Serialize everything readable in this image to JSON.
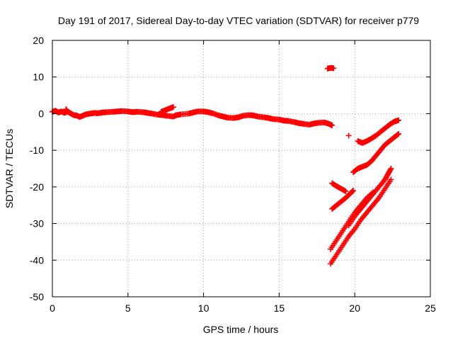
{
  "chart_data": {
    "type": "scatter",
    "title": "Day 191 of 2017, Sidereal Day-to-day VTEC variation (SDTVAR) for receiver p779",
    "xlabel": "GPS time / hours",
    "ylabel": "SDTVAR / TECUs",
    "xlim": [
      0,
      25
    ],
    "ylim": [
      -50,
      20
    ],
    "xticks": [
      0,
      5,
      10,
      15,
      20,
      25
    ],
    "yticks": [
      -50,
      -40,
      -30,
      -20,
      -10,
      0,
      10,
      20
    ],
    "grid": true,
    "legend": "none",
    "marker": "+",
    "color": "#ff0000",
    "series": [
      {
        "values": [
          [
            0.0,
            0.5
          ],
          [
            0.2,
            0.8
          ],
          [
            0.4,
            0.3
          ],
          [
            0.6,
            0.6
          ],
          [
            0.8,
            0.2
          ],
          [
            1.0,
            0.6
          ],
          [
            1.2,
            0.1
          ],
          [
            1.4,
            -0.4
          ],
          [
            1.6,
            -0.5
          ],
          [
            1.8,
            -0.9
          ],
          [
            2.0,
            -0.6
          ],
          [
            2.2,
            -0.2
          ],
          [
            2.5,
            0.0
          ],
          [
            2.8,
            0.2
          ],
          [
            3.0,
            0.1
          ],
          [
            3.3,
            0.3
          ],
          [
            3.6,
            0.4
          ],
          [
            4.0,
            0.5
          ],
          [
            4.3,
            0.6
          ],
          [
            4.6,
            0.7
          ],
          [
            5.0,
            0.6
          ],
          [
            5.3,
            0.4
          ],
          [
            5.6,
            0.5
          ],
          [
            6.0,
            0.4
          ],
          [
            6.3,
            0.2
          ],
          [
            6.6,
            0.0
          ],
          [
            7.0,
            -0.3
          ],
          [
            7.3,
            -0.4
          ],
          [
            7.6,
            -0.6
          ],
          [
            8.0,
            -0.8
          ],
          [
            8.2,
            -0.4
          ],
          [
            8.5,
            -0.2
          ],
          [
            9.0,
            0.0
          ],
          [
            9.3,
            0.3
          ],
          [
            9.6,
            0.6
          ],
          [
            10.0,
            0.6
          ],
          [
            10.3,
            0.4
          ],
          [
            10.6,
            0.1
          ],
          [
            11.0,
            -0.5
          ],
          [
            11.3,
            -0.8
          ],
          [
            11.6,
            -1.1
          ],
          [
            12.0,
            -1.2
          ],
          [
            12.3,
            -1.0
          ],
          [
            12.6,
            -0.6
          ],
          [
            13.0,
            -0.4
          ],
          [
            13.3,
            -0.5
          ],
          [
            13.6,
            -0.8
          ],
          [
            14.0,
            -1.0
          ],
          [
            14.3,
            -1.2
          ],
          [
            14.6,
            -1.5
          ],
          [
            15.0,
            -1.6
          ],
          [
            15.3,
            -1.9
          ],
          [
            15.6,
            -2.0
          ],
          [
            16.0,
            -2.3
          ],
          [
            16.3,
            -2.6
          ],
          [
            16.6,
            -2.8
          ],
          [
            17.0,
            -3.0
          ],
          [
            17.3,
            -2.7
          ],
          [
            17.6,
            -2.5
          ],
          [
            18.0,
            -2.4
          ],
          [
            18.3,
            -2.8
          ],
          [
            18.5,
            -3.2
          ],
          [
            7.2,
            0.5
          ],
          [
            7.5,
            1.0
          ],
          [
            7.8,
            1.5
          ],
          [
            8.0,
            1.8
          ],
          [
            0.9,
            1.2
          ],
          [
            1.0,
            0.5
          ]
        ]
      },
      {
        "values": [
          [
            18.2,
            12.3
          ],
          [
            18.4,
            12.5
          ],
          [
            18.6,
            12.4
          ]
        ]
      },
      {
        "values": [
          [
            19.6,
            -6.0
          ]
        ]
      },
      {
        "values": [
          [
            18.5,
            -19.0
          ],
          [
            18.8,
            -19.8
          ],
          [
            19.1,
            -20.5
          ],
          [
            19.4,
            -21.2
          ]
        ]
      },
      {
        "values": [
          [
            18.5,
            -26.0
          ],
          [
            18.8,
            -25.0
          ],
          [
            19.1,
            -24.0
          ],
          [
            19.4,
            -23.0
          ],
          [
            19.7,
            -21.8
          ],
          [
            19.9,
            -21.0
          ]
        ]
      },
      {
        "values": [
          [
            19.9,
            -16.0
          ],
          [
            20.2,
            -15.0
          ],
          [
            20.5,
            -14.5
          ],
          [
            20.8,
            -14.0
          ],
          [
            21.1,
            -13.0
          ],
          [
            21.4,
            -11.5
          ],
          [
            21.7,
            -10.0
          ],
          [
            22.0,
            -8.5
          ],
          [
            22.3,
            -7.5
          ],
          [
            22.6,
            -6.5
          ],
          [
            22.9,
            -5.5
          ]
        ]
      },
      {
        "values": [
          [
            20.2,
            -7.5
          ],
          [
            20.5,
            -8.0
          ],
          [
            20.8,
            -7.5
          ],
          [
            21.1,
            -6.8
          ],
          [
            21.4,
            -6.0
          ],
          [
            21.7,
            -5.0
          ],
          [
            22.0,
            -4.0
          ],
          [
            22.3,
            -3.0
          ],
          [
            22.6,
            -2.2
          ],
          [
            22.9,
            -1.8
          ]
        ]
      },
      {
        "values": [
          [
            18.4,
            -37.0
          ],
          [
            18.8,
            -34.5
          ],
          [
            19.2,
            -32.0
          ],
          [
            19.6,
            -29.5
          ],
          [
            20.0,
            -27.0
          ],
          [
            20.4,
            -25.0
          ],
          [
            20.8,
            -23.0
          ],
          [
            21.2,
            -21.5
          ]
        ]
      },
      {
        "values": [
          [
            18.4,
            -41.0
          ],
          [
            18.8,
            -38.5
          ],
          [
            19.2,
            -36.0
          ],
          [
            19.6,
            -33.5
          ],
          [
            20.0,
            -31.5
          ],
          [
            20.4,
            -29.0
          ],
          [
            20.8,
            -27.0
          ],
          [
            21.2,
            -25.0
          ],
          [
            21.6,
            -23.0
          ],
          [
            22.0,
            -20.5
          ],
          [
            22.4,
            -18.0
          ]
        ]
      },
      {
        "values": [
          [
            19.6,
            -30.5
          ],
          [
            20.0,
            -28.0
          ],
          [
            20.4,
            -26.0
          ],
          [
            20.8,
            -24.0
          ],
          [
            21.2,
            -22.0
          ],
          [
            21.6,
            -20.0
          ],
          [
            22.0,
            -18.0
          ],
          [
            22.2,
            -16.5
          ],
          [
            22.4,
            -15.0
          ]
        ]
      }
    ]
  }
}
